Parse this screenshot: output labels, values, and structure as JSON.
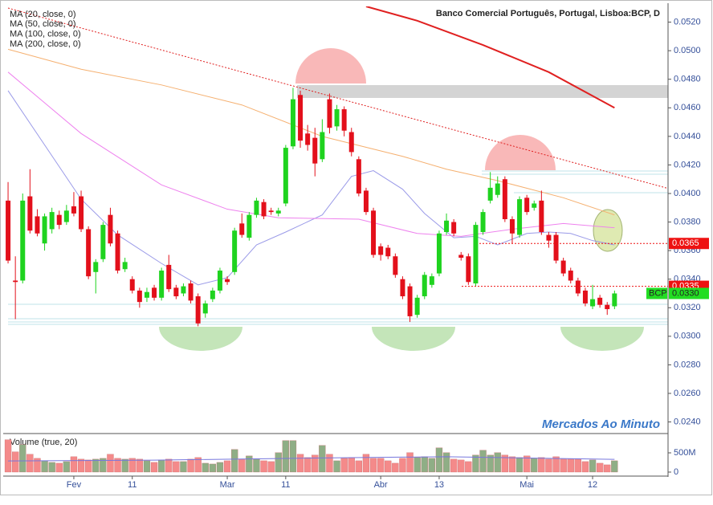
{
  "chart_data": {
    "type": "candlestick",
    "title": "Banco Comercial Português, Portugal, Lisboa:BCP, D",
    "watermark": "Mercados Ao Minuto",
    "up_color": "#1fd31f",
    "down_color": "#e3101b",
    "categories": [
      null,
      null,
      null,
      null,
      null,
      null,
      null,
      null,
      null,
      "Fev",
      null,
      null,
      null,
      null,
      null,
      null,
      null,
      "11",
      null,
      null,
      null,
      null,
      null,
      null,
      null,
      null,
      null,
      null,
      null,
      null,
      "Mar",
      null,
      null,
      null,
      null,
      null,
      null,
      null,
      "11",
      null,
      null,
      null,
      null,
      null,
      null,
      null,
      null,
      null,
      null,
      null,
      null,
      "Abr",
      null,
      null,
      null,
      null,
      null,
      null,
      null,
      "13",
      null,
      null,
      null,
      null,
      null,
      null,
      null,
      null,
      null,
      null,
      null,
      "Mai",
      null,
      null,
      null,
      null,
      null,
      null,
      null,
      null,
      "12",
      null,
      null,
      null
    ],
    "open": [
      0.0395,
      0.0339,
      0.0339,
      0.0398,
      0.0384,
      0.0365,
      0.0375,
      0.0385,
      0.038,
      0.0391,
      0.0398,
      0.0375,
      0.0345,
      0.0354,
      0.0385,
      0.0372,
      0.0347,
      0.034,
      0.0332,
      0.0327,
      0.0334,
      0.0327,
      0.035,
      0.0334,
      0.033,
      0.0337,
      0.0328,
      0.0316,
      0.0326,
      0.0332,
      0.034,
      0.0345,
      0.0379,
      0.0369,
      0.0385,
      0.0394,
      0.0388,
      0.0386,
      0.0393,
      0.0433,
      0.0469,
      0.0442,
      0.0439,
      0.0424,
      0.0466,
      0.0447,
      0.0459,
      0.0443,
      0.0424,
      0.0402,
      0.0388,
      0.0363,
      0.0362,
      0.0356,
      0.034,
      0.0335,
      0.0315,
      0.0328,
      0.0336,
      0.0344,
      0.0373,
      0.038,
      0.0357,
      0.0356,
      0.0337,
      0.0373,
      0.0395,
      0.0399,
      0.041,
      0.0382,
      0.0371,
      0.0397,
      0.039,
      0.0395,
      0.0371,
      0.0371,
      0.0353,
      0.0346,
      0.0339,
      0.0332,
      0.0321,
      0.0327,
      0.0322,
      0.0321
    ],
    "high": [
      0.0408,
      0.0356,
      0.04,
      0.0417,
      0.0389,
      0.0386,
      0.039,
      0.0388,
      0.0392,
      0.0401,
      0.0402,
      0.0377,
      0.0354,
      0.038,
      0.039,
      0.0374,
      0.0355,
      0.0342,
      0.0334,
      0.0334,
      0.0336,
      0.0348,
      0.0357,
      0.0336,
      0.0337,
      0.0339,
      0.033,
      0.0325,
      0.0334,
      0.0348,
      0.0342,
      0.0376,
      0.0386,
      0.0387,
      0.0397,
      0.0396,
      0.039,
      0.039,
      0.0434,
      0.0474,
      0.0472,
      0.0448,
      0.0446,
      0.0452,
      0.047,
      0.0462,
      0.0461,
      0.0446,
      0.0426,
      0.0404,
      0.039,
      0.0365,
      0.0364,
      0.0358,
      0.0342,
      0.0337,
      0.0329,
      0.0345,
      0.0344,
      0.0374,
      0.0386,
      0.0382,
      0.0359,
      0.0358,
      0.038,
      0.0389,
      0.0415,
      0.0412,
      0.0412,
      0.0384,
      0.0398,
      0.0399,
      0.0395,
      0.0402,
      0.0373,
      0.0373,
      0.0355,
      0.0348,
      0.0341,
      0.0334,
      0.0336,
      0.0329,
      0.0324,
      0.0332
    ],
    "low": [
      0.0351,
      0.0312,
      0.0337,
      0.0372,
      0.037,
      0.036,
      0.0372,
      0.0375,
      0.0378,
      0.0384,
      0.0373,
      0.034,
      0.033,
      0.0352,
      0.0363,
      0.0344,
      0.0345,
      0.033,
      0.032,
      0.0324,
      0.0325,
      0.0325,
      0.0331,
      0.0326,
      0.0328,
      0.0323,
      0.0307,
      0.0313,
      0.0324,
      0.033,
      0.0336,
      0.0343,
      0.0369,
      0.0367,
      0.0383,
      0.0382,
      0.0385,
      0.0384,
      0.0391,
      0.0431,
      0.0432,
      0.043,
      0.0412,
      0.0422,
      0.0442,
      0.0444,
      0.044,
      0.0426,
      0.0398,
      0.0385,
      0.0355,
      0.0353,
      0.0354,
      0.0341,
      0.0326,
      0.031,
      0.0313,
      0.0326,
      0.0334,
      0.0342,
      0.0371,
      0.037,
      0.0353,
      0.0336,
      0.0335,
      0.0371,
      0.0393,
      0.0397,
      0.038,
      0.0365,
      0.0369,
      0.0385,
      0.0388,
      0.0371,
      0.0362,
      0.0351,
      0.0342,
      0.0337,
      0.0328,
      0.0321,
      0.0319,
      0.032,
      0.0315,
      0.0319
    ],
    "close": [
      0.0353,
      0.0338,
      0.0395,
      0.0374,
      0.0372,
      0.0384,
      0.0387,
      0.0378,
      0.0388,
      0.0386,
      0.0375,
      0.0342,
      0.0352,
      0.0378,
      0.0365,
      0.0346,
      0.0352,
      0.0332,
      0.0324,
      0.0331,
      0.0327,
      0.0346,
      0.0333,
      0.0328,
      0.0335,
      0.0325,
      0.0309,
      0.0323,
      0.0332,
      0.0346,
      0.0338,
      0.0374,
      0.0371,
      0.0385,
      0.0395,
      0.0384,
      0.0387,
      0.0388,
      0.0432,
      0.0466,
      0.0437,
      0.0434,
      0.0421,
      0.0443,
      0.0446,
      0.0459,
      0.0444,
      0.0429,
      0.04,
      0.0387,
      0.0357,
      0.0357,
      0.0356,
      0.0343,
      0.0328,
      0.0314,
      0.0327,
      0.0343,
      0.0342,
      0.0372,
      0.0381,
      0.0372,
      0.0355,
      0.0338,
      0.0378,
      0.0387,
      0.0404,
      0.0407,
      0.0382,
      0.0372,
      0.0396,
      0.0387,
      0.0393,
      0.0373,
      0.0367,
      0.0353,
      0.0344,
      0.0339,
      0.033,
      0.0323,
      0.0326,
      0.0322,
      0.0319,
      0.033
    ],
    "ylim": [
      0.0233,
      0.0531
    ],
    "yticks": [
      {
        "value": 0.024,
        "label": "0.0240"
      },
      {
        "value": 0.026,
        "label": "0.0260"
      },
      {
        "value": 0.028,
        "label": "0.0280"
      },
      {
        "value": 0.03,
        "label": "0.0300"
      },
      {
        "value": 0.032,
        "label": "0.0320"
      },
      {
        "value": 0.034,
        "label": "0.0340"
      },
      {
        "value": 0.036,
        "label": "0.0360"
      },
      {
        "value": 0.038,
        "label": "0.0380"
      },
      {
        "value": 0.04,
        "label": "0.0400"
      },
      {
        "value": 0.042,
        "label": "0.0420"
      },
      {
        "value": 0.044,
        "label": "0.0440"
      },
      {
        "value": 0.046,
        "label": "0.0460"
      },
      {
        "value": 0.048,
        "label": "0.0480"
      },
      {
        "value": 0.05,
        "label": "0.0500"
      },
      {
        "value": 0.052,
        "label": "0.0520"
      }
    ],
    "moving_averages": [
      {
        "name": "MA (20, close, 0)",
        "color": "#9a9ae8",
        "x": [
          0,
          5,
          10,
          15,
          21,
          26,
          30,
          34,
          38,
          43,
          47,
          50,
          54,
          57,
          61,
          64,
          67,
          71,
          74,
          77,
          80,
          83
        ],
        "values": [
          0.0472,
          0.0434,
          0.0396,
          0.0371,
          0.0351,
          0.0336,
          0.0341,
          0.0364,
          0.0373,
          0.0385,
          0.0412,
          0.0416,
          0.0403,
          0.0386,
          0.0369,
          0.037,
          0.0364,
          0.0372,
          0.0373,
          0.0372,
          0.0367,
          0.0364
        ]
      },
      {
        "name": "MA (50, close, 0)",
        "color": "#ee82ee",
        "x": [
          0,
          10,
          21,
          30,
          37,
          48,
          56,
          62,
          69,
          76,
          83
        ],
        "values": [
          0.0485,
          0.0442,
          0.0406,
          0.0389,
          0.0383,
          0.0382,
          0.0372,
          0.037,
          0.0375,
          0.0379,
          0.0376
        ]
      },
      {
        "name": "MA (100, close, 0)",
        "color": "#f5b070",
        "x": [
          0,
          10,
          21,
          32,
          43,
          54,
          60,
          67,
          76,
          83
        ],
        "values": [
          0.0501,
          0.0487,
          0.0476,
          0.0462,
          0.044,
          0.0426,
          0.0417,
          0.0409,
          0.0397,
          0.0385
        ]
      },
      {
        "name": "MA (200, close, 0)",
        "color": "#e02020",
        "x": [
          49,
          56,
          65,
          74,
          83
        ],
        "values": [
          0.0531,
          0.0521,
          0.0504,
          0.0485,
          0.046
        ]
      }
    ],
    "price_tags": [
      {
        "label": "0.0365",
        "value": 0.0365,
        "color": "#ee1111"
      },
      {
        "label": "0.0335",
        "value": 0.0335,
        "color": "#ee1111"
      }
    ],
    "last_tag": {
      "name": "BCP",
      "label": "0.0330",
      "value": 0.033,
      "color": "#22dd22"
    },
    "volume": {
      "label": "Volume (true, 20)",
      "up_color": "#8fae86",
      "down_color": "#f48a8a",
      "ma_color": "#7777dd",
      "ylim": [
        0,
        980000000.0
      ],
      "yticks": [
        {
          "value": 500000000.0,
          "label": "500M"
        },
        0
      ],
      "values": [
        840000000.0,
        525000000.0,
        714000000.0,
        462000000.0,
        357000000.0,
        294000000.0,
        252000000.0,
        231000000.0,
        273000000.0,
        399000000.0,
        336000000.0,
        315000000.0,
        336000000.0,
        357000000.0,
        462000000.0,
        357000000.0,
        336000000.0,
        357000000.0,
        336000000.0,
        294000000.0,
        252000000.0,
        315000000.0,
        336000000.0,
        273000000.0,
        273000000.0,
        336000000.0,
        378000000.0,
        231000000.0,
        210000000.0,
        252000000.0,
        294000000.0,
        588000000.0,
        336000000.0,
        420000000.0,
        336000000.0,
        294000000.0,
        273000000.0,
        504000000.0,
        819000000.0,
        819000000.0,
        462000000.0,
        378000000.0,
        441000000.0,
        693000000.0,
        462000000.0,
        294000000.0,
        357000000.0,
        378000000.0,
        294000000.0,
        462000000.0,
        357000000.0,
        357000000.0,
        294000000.0,
        231000000.0,
        357000000.0,
        504000000.0,
        378000000.0,
        399000000.0,
        357000000.0,
        630000000.0,
        504000000.0,
        336000000.0,
        315000000.0,
        273000000.0,
        441000000.0,
        567000000.0,
        441000000.0,
        504000000.0,
        441000000.0,
        399000000.0,
        378000000.0,
        420000000.0,
        357000000.0,
        378000000.0,
        336000000.0,
        399000000.0,
        336000000.0,
        336000000.0,
        336000000.0,
        273000000.0,
        315000000.0,
        231000000.0,
        189000000.0,
        294000000.0
      ],
      "ma": {
        "x": [
          0,
          20,
          40,
          60,
          83
        ],
        "values": [
          290000000.0,
          310000000.0,
          360000000.0,
          400000000.0,
          330000000.0
        ]
      }
    }
  }
}
